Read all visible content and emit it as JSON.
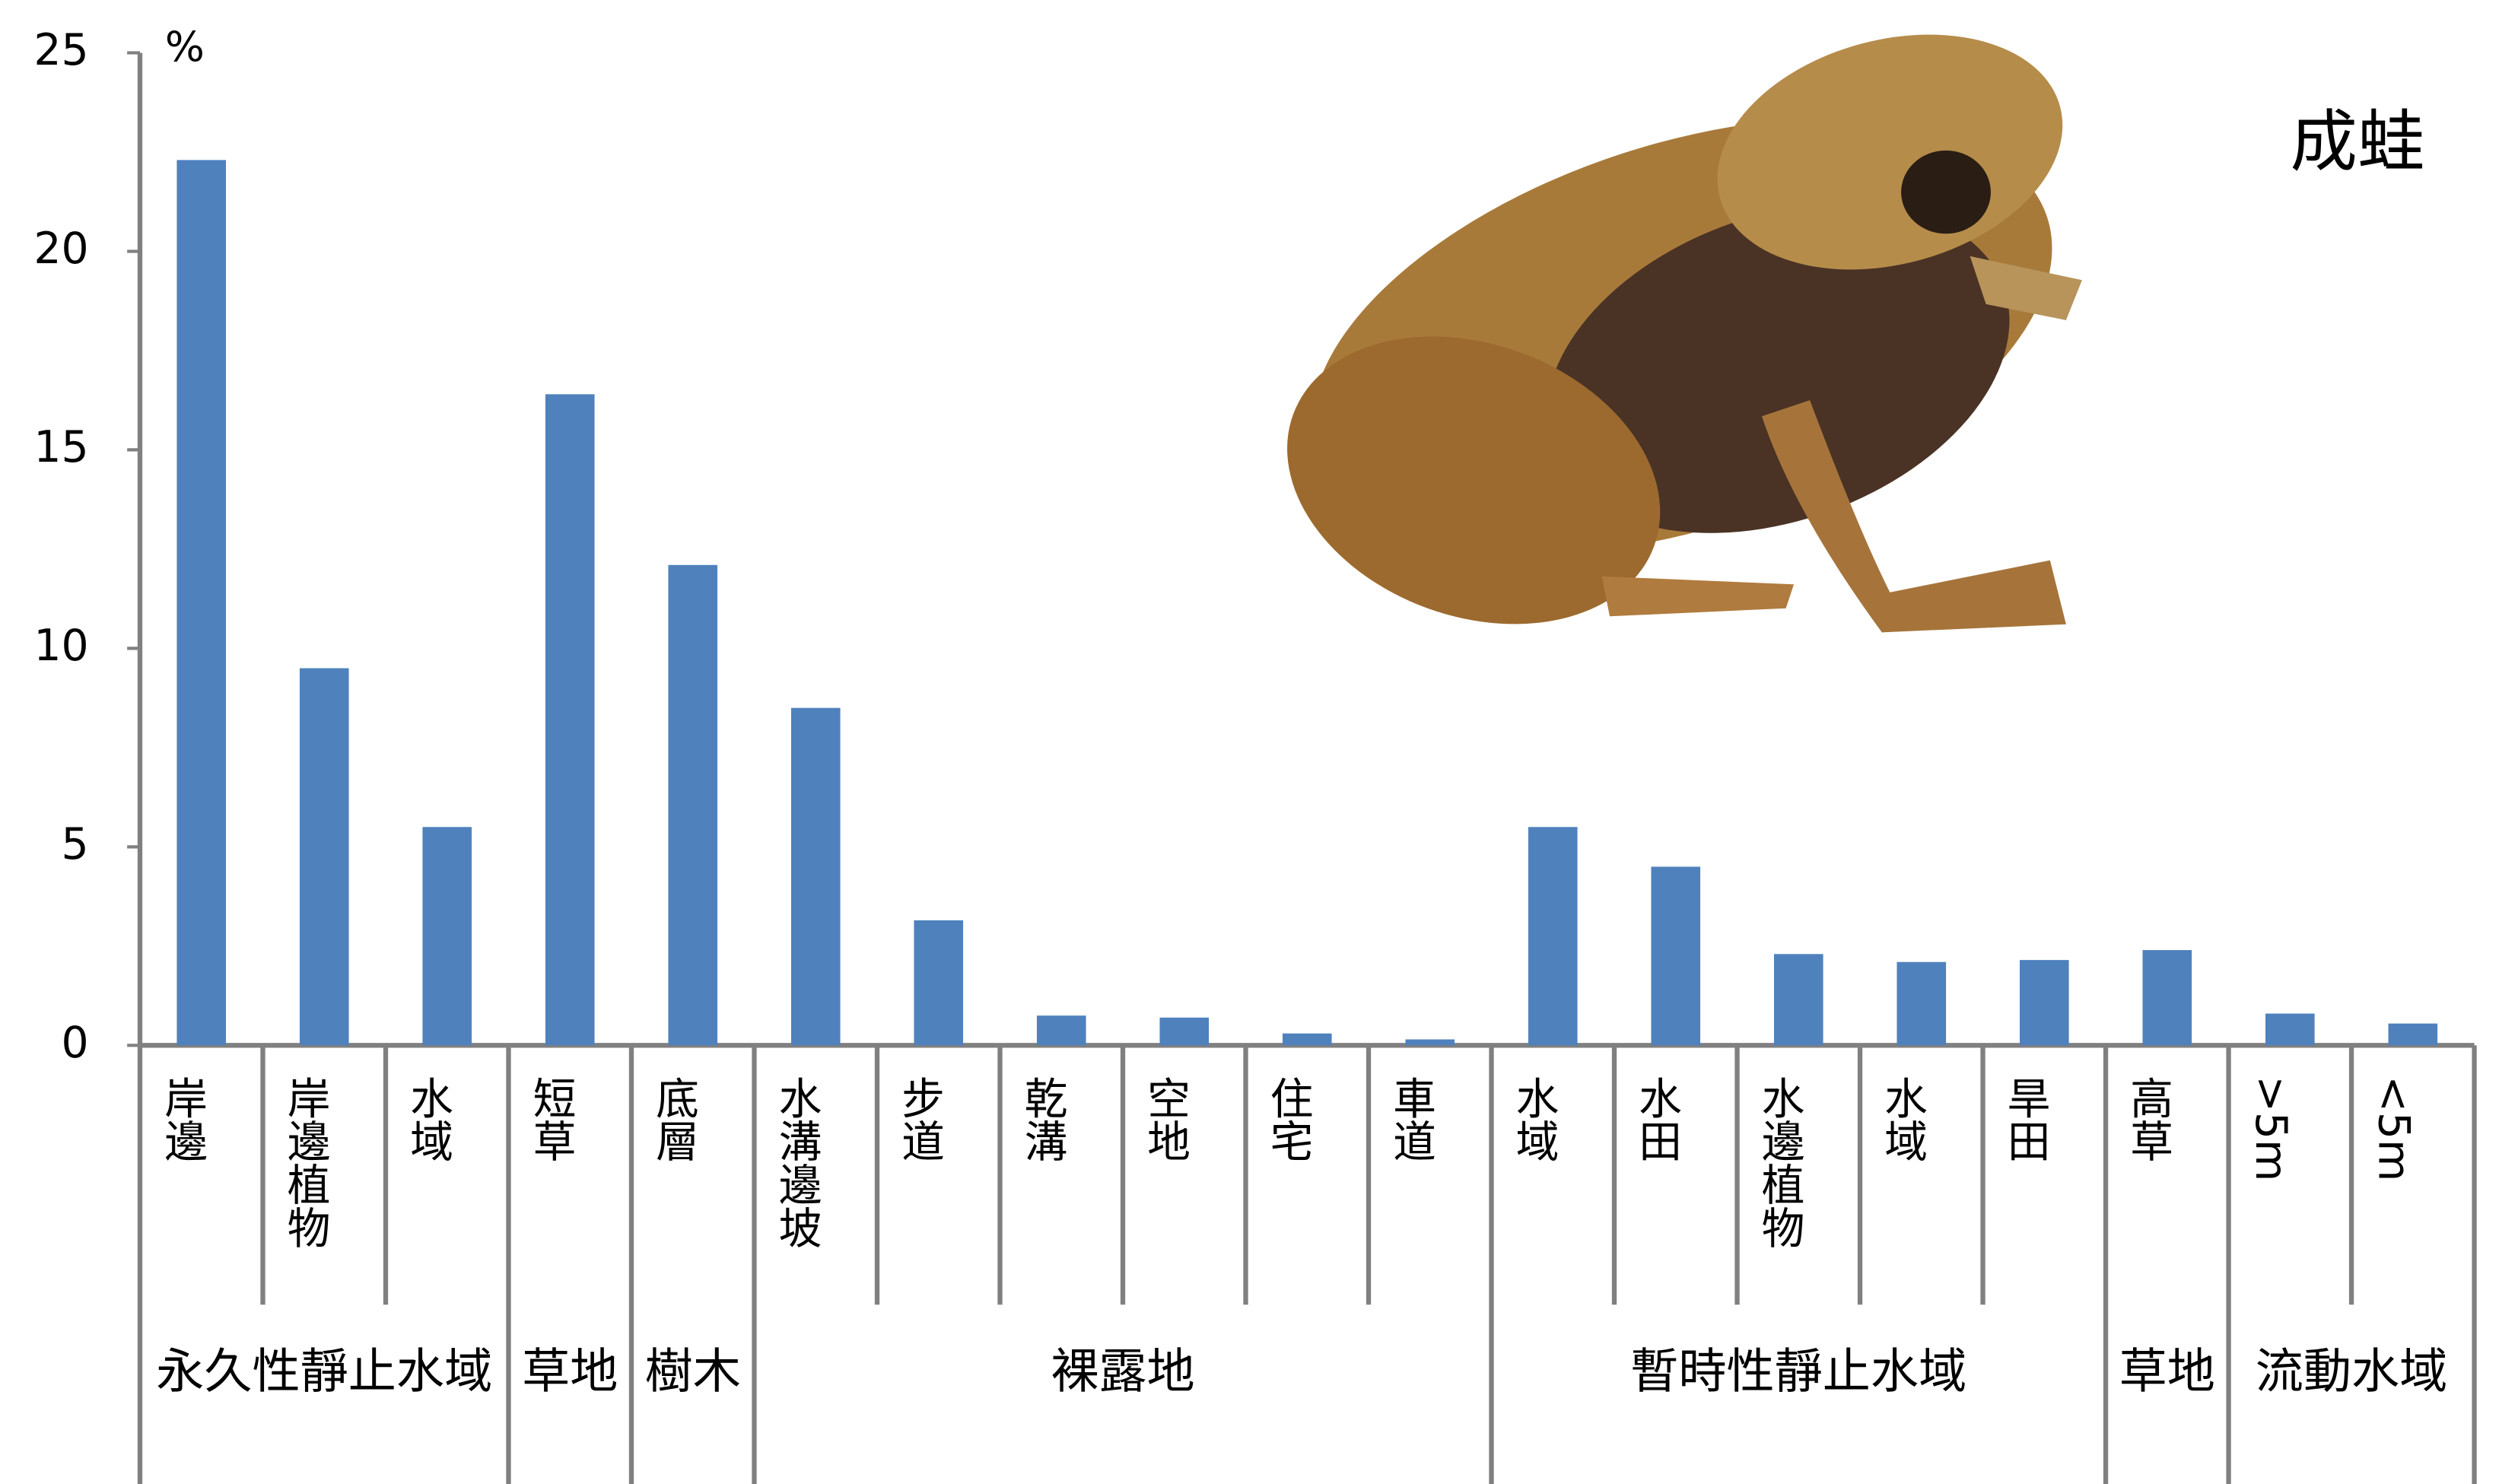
{
  "chart_data": {
    "type": "bar",
    "title": "成蛙",
    "y_label": "%",
    "color": "#4f81bd",
    "ylim": [
      0,
      25
    ],
    "yticks": [
      0,
      5,
      10,
      15,
      20,
      25
    ],
    "groups": [
      {
        "name": "永久性靜止水域",
        "categories": [
          "岸邊",
          "岸邊植物",
          "水域"
        ],
        "values": [
          22.3,
          9.5,
          5.5
        ]
      },
      {
        "name": "草地",
        "categories": [
          "短草"
        ],
        "values": [
          16.4
        ]
      },
      {
        "name": "樹木",
        "categories": [
          "底層"
        ],
        "values": [
          12.1
        ]
      },
      {
        "name": "裸露地",
        "categories": [
          "水溝邊坡",
          "步道",
          "乾溝",
          "空地",
          "住宅",
          "車道"
        ],
        "values": [
          8.5,
          3.15,
          0.75,
          0.7,
          0.3,
          0.15
        ]
      },
      {
        "name": "暫時性靜止水域",
        "categories": [
          "水域",
          "水田",
          "水邊植物",
          "水域",
          "旱田"
        ],
        "values": [
          5.5,
          4.5,
          2.3,
          2.1,
          2.15
        ]
      },
      {
        "name": "草地",
        "categories": [
          "高草"
        ],
        "values": [
          2.4
        ]
      },
      {
        "name": "流動水域",
        "categories": [
          ">5m",
          "<5m"
        ],
        "values": [
          0.8,
          0.55
        ]
      }
    ]
  }
}
